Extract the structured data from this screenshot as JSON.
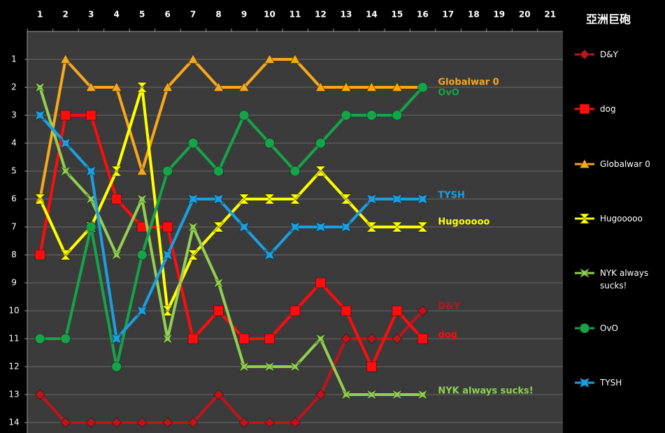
{
  "chart_data": {
    "type": "line",
    "title": "亞洲巨砲",
    "x": [
      1,
      2,
      3,
      4,
      5,
      6,
      7,
      8,
      9,
      10,
      11,
      12,
      13,
      14,
      15,
      16
    ],
    "xlim": [
      0.5,
      21.5
    ],
    "xticks": [
      1,
      2,
      3,
      4,
      5,
      6,
      7,
      8,
      9,
      10,
      11,
      12,
      13,
      14,
      15,
      16,
      17,
      18,
      19,
      20,
      21
    ],
    "ylim": [
      0,
      14
    ],
    "y_reversed": true,
    "yticks": [
      1,
      2,
      3,
      4,
      5,
      6,
      7,
      8,
      9,
      10,
      11,
      12,
      13,
      14
    ],
    "grid": true,
    "legend": "right",
    "end_labels": true,
    "series": [
      {
        "name": "D&Y",
        "color": "#c0141c",
        "marker": "diamond",
        "values": [
          13,
          14,
          14,
          14,
          14,
          14,
          14,
          13,
          14,
          14,
          14,
          13,
          11,
          11,
          11,
          10
        ]
      },
      {
        "name": "dog",
        "color": "#ff0d0d",
        "marker": "square",
        "values": [
          8,
          3,
          3,
          6,
          7,
          7,
          11,
          10,
          11,
          11,
          10,
          9,
          10,
          12,
          10,
          11
        ]
      },
      {
        "name": "Globalwar 0",
        "color": "#f7a81c",
        "marker": "triangle",
        "values": [
          6,
          1,
          2,
          2,
          5,
          2,
          1,
          2,
          2,
          1,
          1,
          2,
          2,
          2,
          2,
          2
        ]
      },
      {
        "name": "Hugooooo",
        "color": "#ffff00",
        "marker": "hourglass",
        "values": [
          6,
          8,
          7,
          5,
          2,
          10,
          8,
          7,
          6,
          6,
          6,
          5,
          6,
          7,
          7,
          7
        ]
      },
      {
        "name": "NYK always sucks!",
        "color": "#92d050",
        "marker": "cross",
        "values": [
          2,
          5,
          6,
          8,
          6,
          11,
          7,
          9,
          12,
          12,
          12,
          11,
          13,
          13,
          13,
          13
        ]
      },
      {
        "name": "OvO",
        "color": "#16a34a",
        "marker": "circle",
        "values": [
          11,
          11,
          7,
          12,
          8,
          5,
          4,
          5,
          3,
          4,
          5,
          4,
          3,
          3,
          3,
          2
        ]
      },
      {
        "name": "TYSH",
        "color": "#1c9fe0",
        "marker": "star",
        "values": [
          3,
          4,
          5,
          11,
          10,
          8,
          6,
          6,
          7,
          8,
          7,
          7,
          7,
          6,
          6,
          6
        ]
      }
    ]
  }
}
